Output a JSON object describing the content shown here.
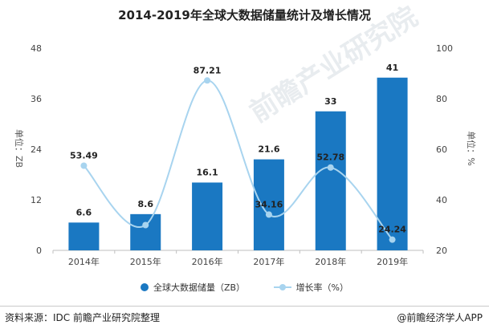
{
  "chart_data": {
    "type": "bar",
    "title": "2014-2019年全球大数据储量统计及增长情况",
    "categories": [
      "2014年",
      "2015年",
      "2016年",
      "2017年",
      "2018年",
      "2019年"
    ],
    "series": [
      {
        "name": "全球大数据储量（ZB）",
        "type": "bar",
        "axis": "left",
        "values": [
          6.6,
          8.6,
          16.1,
          21.6,
          33,
          41
        ],
        "color": "#1a78c2"
      },
      {
        "name": "增长率（%）",
        "type": "line",
        "axis": "right",
        "values": [
          53.49,
          30,
          87.21,
          34.16,
          52.78,
          24.24
        ],
        "color": "#a8d4ef"
      }
    ],
    "data_labels": {
      "bar": [
        "6.6",
        "8.6",
        "16.1",
        "21.6",
        "33",
        "41"
      ],
      "line": [
        "53.49",
        "",
        "87.21",
        "34.16",
        "52.78",
        "24.24"
      ]
    },
    "y_left": {
      "label": "单位：ZB",
      "ylim": [
        0,
        48
      ],
      "ticks": [
        "0",
        "12",
        "24",
        "36",
        "48"
      ]
    },
    "y_right": {
      "label": "单位：%",
      "ylim": [
        20,
        100
      ],
      "ticks": [
        "20",
        "40",
        "60",
        "80",
        "100"
      ]
    },
    "grid": false,
    "legend_position": "bottom"
  },
  "footer": {
    "source": "资料来源：IDC 前瞻产业研究院整理",
    "brand": "@前瞻经济学人APP"
  },
  "watermark": "前瞻产业研究院"
}
